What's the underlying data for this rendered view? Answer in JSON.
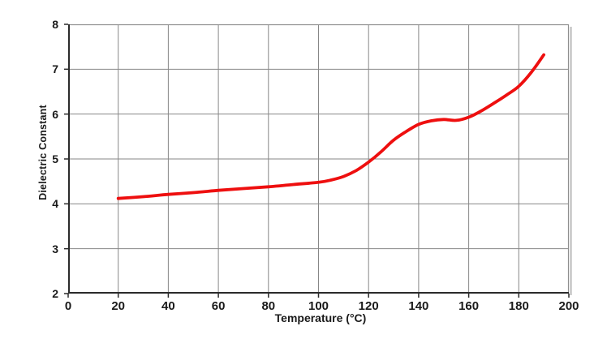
{
  "chart_data": {
    "type": "line",
    "title": "",
    "xlabel": "Temperature (°C)",
    "ylabel": "Dielectric Constant",
    "xlim": [
      0,
      200
    ],
    "ylim": [
      2,
      8
    ],
    "x_ticks": [
      0,
      20,
      40,
      60,
      80,
      100,
      120,
      140,
      160,
      180,
      200
    ],
    "y_ticks": [
      2,
      3,
      4,
      5,
      6,
      7,
      8
    ],
    "grid": true,
    "legend": false,
    "series": [
      {
        "name": "dielectric-constant",
        "color": "#ee0f0f",
        "x": [
          20,
          30,
          40,
          50,
          60,
          70,
          80,
          90,
          100,
          105,
          110,
          115,
          120,
          125,
          130,
          135,
          140,
          145,
          150,
          155,
          160,
          165,
          170,
          175,
          180,
          185,
          190
        ],
        "y": [
          4.12,
          4.16,
          4.21,
          4.25,
          4.3,
          4.34,
          4.38,
          4.43,
          4.48,
          4.53,
          4.61,
          4.74,
          4.93,
          5.16,
          5.42,
          5.61,
          5.77,
          5.85,
          5.88,
          5.86,
          5.93,
          6.07,
          6.24,
          6.42,
          6.62,
          6.93,
          7.32
        ]
      }
    ]
  },
  "style": {
    "background": "#ffffff",
    "grid_color": "#878787",
    "border_color": "#8f8f8f",
    "shadow_color": "#c6c6c6",
    "axis_color": "#2b2b2b",
    "text_color": "#1a1a1a",
    "line_width": 3.8
  }
}
